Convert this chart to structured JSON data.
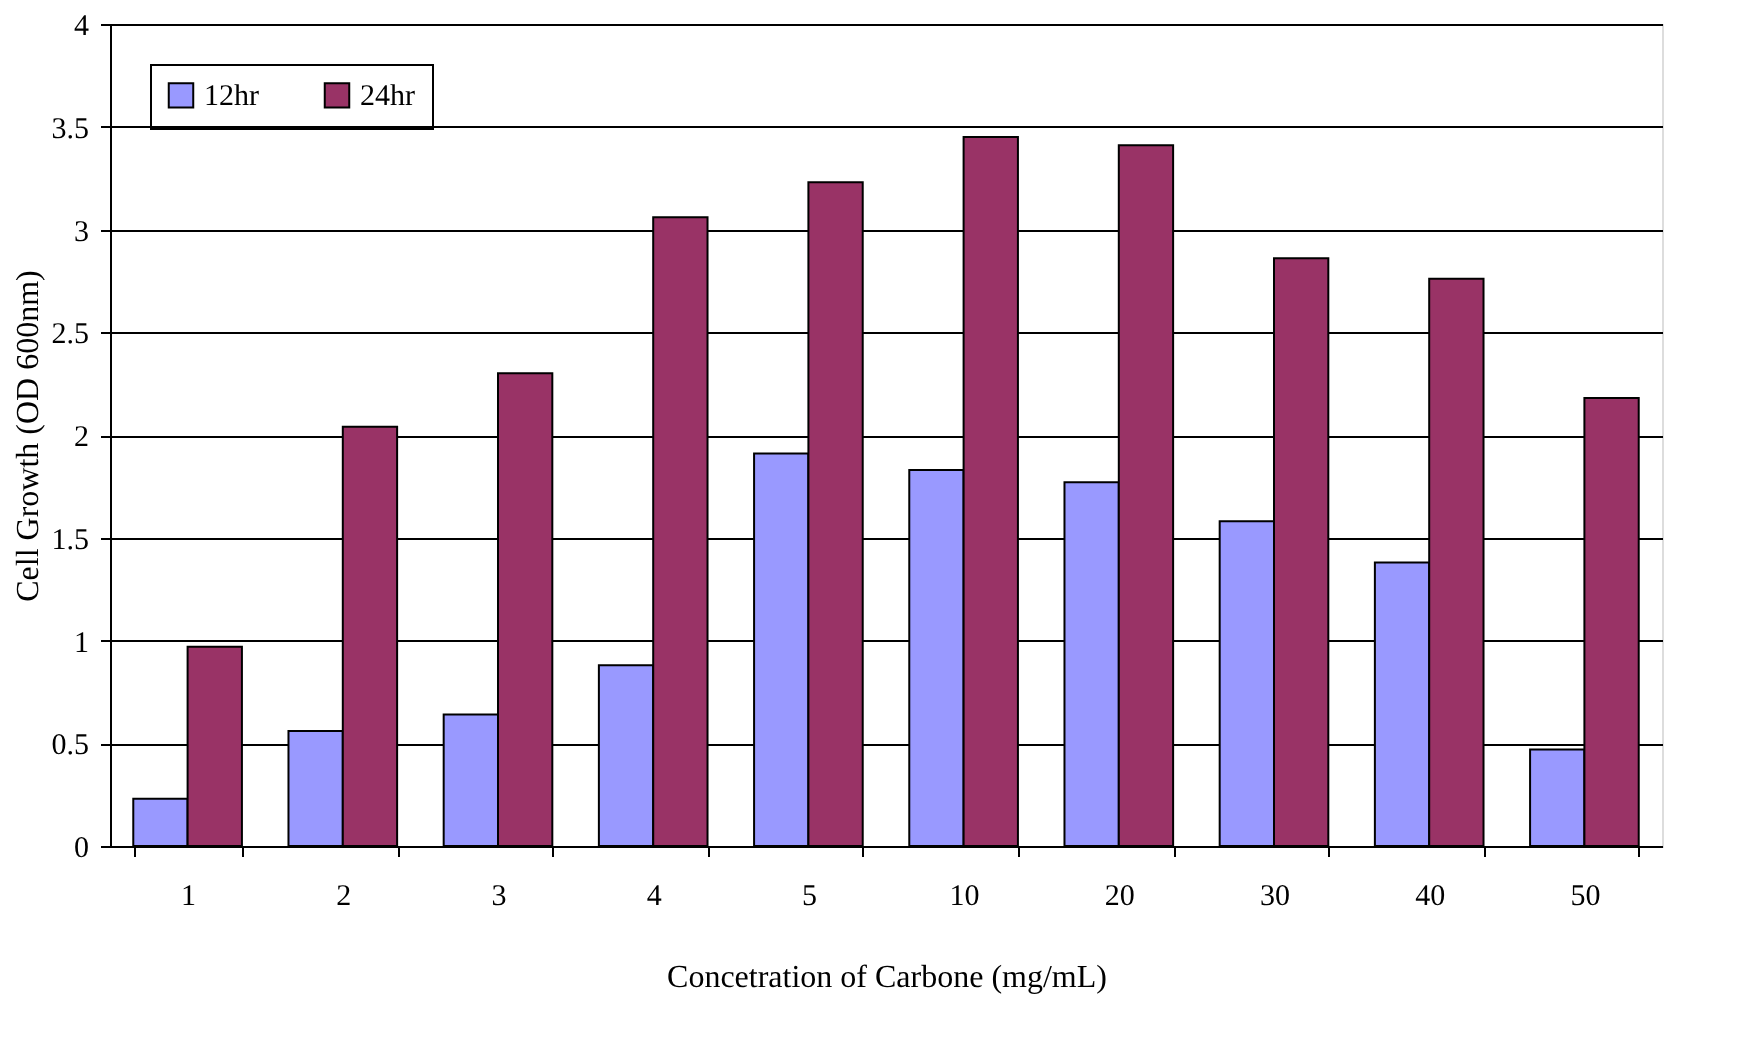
{
  "chart_data": {
    "type": "bar",
    "xlabel": "Concetration of Carbone (mg/mL)",
    "ylabel": "Cell Growth (OD 600nm)",
    "categories": [
      "1",
      "2",
      "3",
      "4",
      "5",
      "10",
      "20",
      "30",
      "40",
      "50"
    ],
    "series": [
      {
        "name": "12hr",
        "color": "#9999ff",
        "values": [
          0.23,
          0.56,
          0.64,
          0.88,
          1.91,
          1.83,
          1.77,
          1.58,
          1.38,
          0.47
        ]
      },
      {
        "name": "24hr",
        "color": "#993366",
        "values": [
          0.97,
          2.04,
          2.3,
          3.06,
          3.23,
          3.45,
          3.41,
          2.86,
          2.76,
          2.18
        ]
      }
    ],
    "ylim": [
      0,
      4
    ],
    "yticks": [
      0,
      0.5,
      1,
      1.5,
      2,
      2.5,
      3,
      3.5,
      4
    ],
    "grid": "y",
    "legend": "top left"
  }
}
